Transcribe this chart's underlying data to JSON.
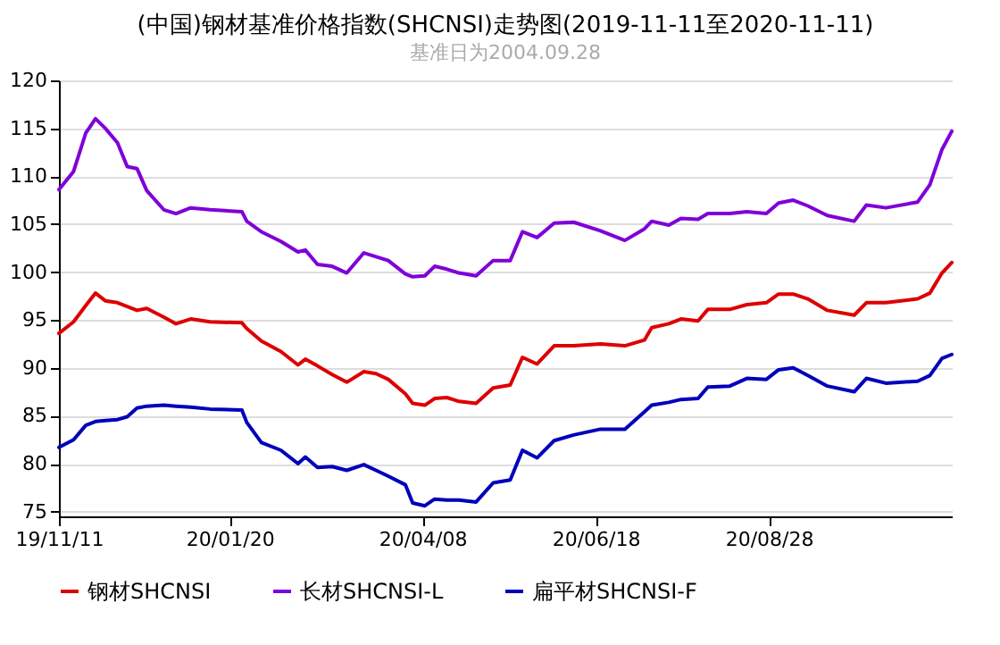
{
  "chart_data": {
    "type": "line",
    "title": "(中国)钢材基准价格指数(SHCNSI)走势图(2019-11-11至2020-11-11)",
    "subtitle": "基准日为2004.09.28",
    "x": [
      "2019-11-11",
      "2019-11-17",
      "2019-11-22",
      "2019-11-26",
      "2019-11-30",
      "2019-12-05",
      "2019-12-09",
      "2019-12-13",
      "2019-12-17",
      "2019-12-24",
      "2019-12-29",
      "2020-01-04",
      "2020-01-12",
      "2020-01-25",
      "2020-01-27",
      "2020-02-02",
      "2020-02-10",
      "2020-02-17",
      "2020-02-20",
      "2020-02-25",
      "2020-03-02",
      "2020-03-08",
      "2020-03-15",
      "2020-03-20",
      "2020-03-25",
      "2020-04-01",
      "2020-04-04",
      "2020-04-09",
      "2020-04-13",
      "2020-04-18",
      "2020-04-23",
      "2020-04-30",
      "2020-05-07",
      "2020-05-14",
      "2020-05-19",
      "2020-05-25",
      "2020-06-01",
      "2020-06-09",
      "2020-06-20",
      "2020-06-30",
      "2020-07-08",
      "2020-07-11",
      "2020-07-18",
      "2020-07-23",
      "2020-07-30",
      "2020-08-03",
      "2020-08-12",
      "2020-08-19",
      "2020-08-27",
      "2020-09-01",
      "2020-09-07",
      "2020-09-13",
      "2020-09-21",
      "2020-10-02",
      "2020-10-07",
      "2020-10-15",
      "2020-10-28",
      "2020-11-02",
      "2020-11-07",
      "2020-11-11"
    ],
    "series": [
      {
        "name": "钢材SHCNSI",
        "color": "#dd0000",
        "values": [
          93.6,
          94.8,
          96.5,
          97.8,
          97,
          96.8,
          96.4,
          96,
          96.2,
          95.3,
          94.6,
          95.1,
          94.8,
          94.7,
          94.1,
          92.8,
          91.7,
          90.3,
          90.9,
          90.2,
          89.3,
          88.5,
          89.6,
          89.4,
          88.8,
          87.3,
          86.3,
          86.1,
          86.8,
          86.9,
          86.5,
          86.3,
          87.9,
          88.2,
          91.1,
          90.4,
          92.3,
          92.3,
          92.5,
          92.3,
          92.9,
          94.2,
          94.6,
          95.1,
          94.9,
          96.1,
          96.1,
          96.6,
          96.8,
          97.7,
          97.7,
          97.2,
          96,
          95.5,
          96.8,
          96.8,
          97.2,
          97.8,
          99.9,
          101
        ]
      },
      {
        "name": "长材SHCNSI-L",
        "color": "#7f00d8",
        "values": [
          108.6,
          110.5,
          114.5,
          116,
          115,
          113.5,
          111,
          110.8,
          108.5,
          106.5,
          106.1,
          106.7,
          106.5,
          106.3,
          105.3,
          104.2,
          103.2,
          102.1,
          102.3,
          100.8,
          100.6,
          99.9,
          102,
          101.6,
          101.2,
          99.8,
          99.5,
          99.6,
          100.6,
          100.3,
          99.9,
          99.6,
          101.2,
          101.2,
          104.2,
          103.6,
          105.1,
          105.2,
          104.3,
          103.3,
          104.5,
          105.3,
          104.9,
          105.6,
          105.5,
          106.1,
          106.1,
          106.3,
          106.1,
          107.2,
          107.5,
          106.9,
          105.9,
          105.3,
          107,
          106.7,
          107.3,
          109.1,
          112.8,
          114.7
        ]
      },
      {
        "name": "扁平材SHCNSI-F",
        "color": "#0000bb",
        "values": [
          81.7,
          82.5,
          84,
          84.4,
          84.5,
          84.6,
          84.9,
          85.8,
          86,
          86.1,
          86,
          85.9,
          85.7,
          85.6,
          84.3,
          82.2,
          81.4,
          80,
          80.7,
          79.6,
          79.7,
          79.3,
          79.9,
          79.3,
          78.7,
          77.8,
          75.9,
          75.6,
          76.3,
          76.2,
          76.2,
          76,
          78,
          78.3,
          81.4,
          80.6,
          82.4,
          83,
          83.6,
          83.6,
          85.4,
          86.1,
          86.4,
          86.7,
          86.8,
          88,
          88.1,
          88.9,
          88.8,
          89.8,
          90,
          89.2,
          88.1,
          87.5,
          88.9,
          88.4,
          88.6,
          89.2,
          91,
          91.4
        ]
      }
    ],
    "xlim": [
      "2019-11-11",
      "2020-11-11"
    ],
    "xticks": [
      {
        "value": "2019-11-11",
        "label": "19/11/11"
      },
      {
        "value": "2020-01-20",
        "label": "20/01/20"
      },
      {
        "value": "2020-04-08",
        "label": "20/04/08"
      },
      {
        "value": "2020-06-18",
        "label": "20/06/18"
      },
      {
        "value": "2020-08-28",
        "label": "20/08/28"
      }
    ],
    "ylim": [
      74.5,
      120
    ],
    "yticks": [
      75,
      80,
      85,
      90,
      95,
      100,
      105,
      110,
      115,
      120
    ],
    "grid": "y",
    "legend": "bottom",
    "marker": "none",
    "line_style": "solid"
  }
}
